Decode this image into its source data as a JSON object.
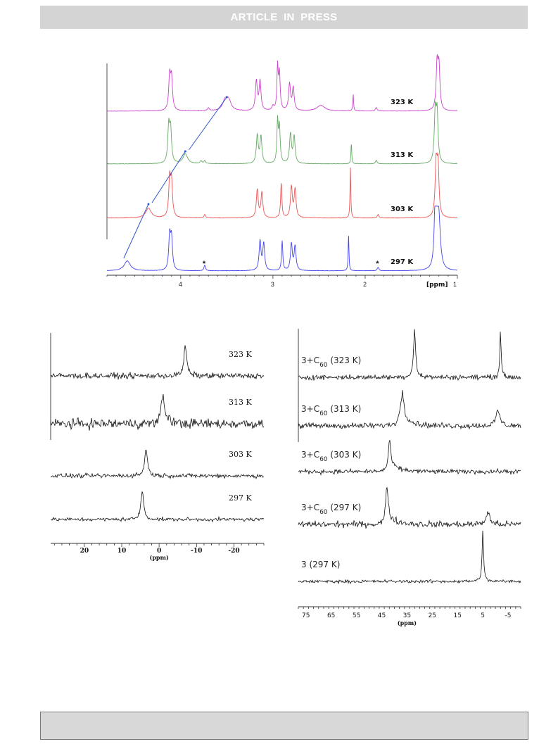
{
  "header": {
    "banner_text": "ARTICLE IN PRESS",
    "banner_color": "#d4d4d4"
  },
  "chart_data": [
    {
      "type": "line",
      "panel": "top",
      "xlabel": "[ppm]",
      "x_reversed": true,
      "xlim": [
        4.8,
        1.0
      ],
      "tick_labels": [
        "4",
        "3",
        "2",
        "1"
      ],
      "series": [
        {
          "name": "323 K",
          "color": "#cc44cc",
          "peaks": [
            4.12,
            4.1,
            3.7,
            3.52,
            3.48,
            3.18,
            3.14,
            3.0,
            2.95,
            2.93,
            2.82,
            2.78,
            2.48,
            2.13,
            1.88,
            1.22,
            1.2
          ]
        },
        {
          "name": "313 K",
          "color": "#66aa66",
          "peaks": [
            4.13,
            4.11,
            3.95,
            3.78,
            3.74,
            3.17,
            3.13,
            2.95,
            2.93,
            2.81,
            2.77,
            2.15,
            1.88,
            1.24,
            1.22
          ]
        },
        {
          "name": "303 K",
          "color": "#ee5555",
          "peaks": [
            4.35,
            4.12,
            4.1,
            3.74,
            3.17,
            3.12,
            2.91,
            2.8,
            2.76,
            2.16,
            1.86,
            1.23,
            1.21
          ]
        },
        {
          "name": "297 K",
          "color": "#4444ee",
          "peaks": [
            4.58,
            4.12,
            4.1,
            3.74,
            3.14,
            3.1,
            2.9,
            2.8,
            2.76,
            2.18,
            1.86,
            1.24,
            1.22,
            1.2
          ]
        }
      ],
      "annotations": [
        "*",
        "*"
      ],
      "star_positions_ppm": [
        3.74,
        1.86
      ],
      "arrow_color": "#3355cc"
    },
    {
      "type": "line",
      "panel": "bottom-left",
      "xlabel": "(ppm)",
      "x_reversed": true,
      "xlim": [
        29,
        -28
      ],
      "tick_labels": [
        "20",
        "10",
        "0",
        "-10",
        "-20"
      ],
      "tick_values": [
        20,
        10,
        0,
        -10,
        -20
      ],
      "series": [
        {
          "name": "323 K",
          "peak_ppm": -7
        },
        {
          "name": "313 K",
          "peak_ppm": -1
        },
        {
          "name": "303 K",
          "peak_ppm": 3.5
        },
        {
          "name": "297 K",
          "peak_ppm": 4.5
        }
      ]
    },
    {
      "type": "line",
      "panel": "bottom-right",
      "xlabel": "(ppm)",
      "x_reversed": true,
      "xlim": [
        78,
        -10
      ],
      "tick_labels": [
        "75",
        "65",
        "55",
        "45",
        "35",
        "25",
        "15",
        "5",
        "-5"
      ],
      "tick_values": [
        75,
        65,
        55,
        45,
        35,
        25,
        15,
        5,
        -5
      ],
      "series": [
        {
          "name_main": "3+C",
          "name_sub": "60",
          "name_temp": " (323 K)",
          "peaks_ppm": [
            32,
            -2
          ]
        },
        {
          "name_main": "3+C",
          "name_sub": "60",
          "name_temp": " (313 K)",
          "peaks_ppm": [
            37,
            -1
          ]
        },
        {
          "name_main": "3+C",
          "name_sub": "60",
          "name_temp": " (303 K)",
          "peaks_ppm": [
            42
          ]
        },
        {
          "name_main": "3+C",
          "name_sub": "60",
          "name_temp": " (297 K)",
          "peaks_ppm": [
            43,
            3
          ]
        },
        {
          "name_main": "3 (297 K)",
          "name_sub": "",
          "name_temp": "",
          "peaks_ppm": [
            5
          ]
        }
      ]
    }
  ]
}
